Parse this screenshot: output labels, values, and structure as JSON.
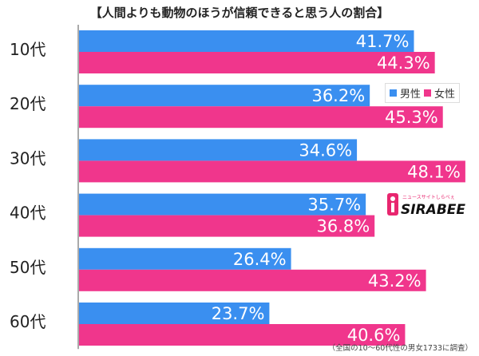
{
  "title": "【人間よりも動物のほうが信頼できると思う人の割合】",
  "footnote": "（全国の10〜60代性の男女1733に調査）",
  "logo_text": "SIRABEE",
  "logo_tagline": "ニュースサイトしらべぇ",
  "colors": {
    "male": "#3a8ff0",
    "female": "#f0368c",
    "axis": "#555555"
  },
  "chart_data": {
    "type": "bar",
    "orientation": "horizontal",
    "title": "【人間よりも動物のほうが信頼できると思う人の割合】",
    "categories": [
      "10代",
      "20代",
      "30代",
      "40代",
      "50代",
      "60代"
    ],
    "series": [
      {
        "name": "男性",
        "values": [
          41.7,
          36.2,
          34.6,
          35.7,
          26.4,
          23.7
        ],
        "labels": [
          "41.7%",
          "36.2%",
          "34.6%",
          "35.7%",
          "26.4%",
          "23.7%"
        ]
      },
      {
        "name": "女性",
        "values": [
          44.3,
          45.3,
          48.1,
          36.8,
          43.2,
          40.6
        ],
        "labels": [
          "44.3%",
          "45.3%",
          "48.1%",
          "36.8%",
          "43.2%",
          "40.6%"
        ]
      }
    ],
    "legend": {
      "position": "right",
      "items": [
        "男性",
        "女性"
      ]
    },
    "xlim": [
      0,
      65
    ],
    "grid": false
  }
}
